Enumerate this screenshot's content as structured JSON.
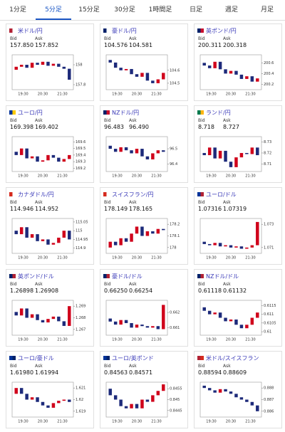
{
  "tabs": [
    "1分足",
    "5分足",
    "15分足",
    "30分足",
    "1時間足",
    "日足",
    "週足",
    "月足"
  ],
  "active_tab": 1,
  "bid_label": "Bid",
  "ask_label": "Ask",
  "time_labels": [
    "19:30",
    "20:30",
    "21:30"
  ],
  "cards": [
    {
      "pair": "米ドル/円",
      "bid": "157.850",
      "ask": "157.852",
      "ylim": [
        157.75,
        158.1
      ],
      "yticks": [
        158,
        157.8
      ],
      "closes": [
        157.95,
        157.98,
        158.0,
        157.97,
        158.02,
        158.0,
        158.03,
        157.99,
        158.01,
        157.98,
        157.96,
        157.85
      ]
    },
    {
      "pair": "豪ドル/円",
      "bid": "104.576",
      "ask": "104.581",
      "ylim": [
        104.45,
        104.72
      ],
      "yticks": [
        104.6,
        104.5
      ],
      "closes": [
        104.68,
        104.66,
        104.62,
        104.6,
        104.61,
        104.57,
        104.55,
        104.58,
        104.52,
        104.5,
        104.53,
        104.58
      ]
    },
    {
      "pair": "英ポンド/円",
      "bid": "200.311",
      "ask": "200.318",
      "ylim": [
        200.1,
        200.75
      ],
      "yticks": [
        200.6,
        200.4,
        200.2
      ],
      "closes": [
        200.6,
        200.55,
        200.5,
        200.62,
        200.48,
        200.4,
        200.45,
        200.38,
        200.3,
        200.35,
        200.25,
        200.31
      ]
    },
    {
      "pair": "ユーロ/円",
      "bid": "169.398",
      "ask": "169.402",
      "ylim": [
        169.15,
        169.68
      ],
      "yticks": [
        169.6,
        169.5,
        169.4,
        169.3,
        169.2
      ],
      "closes": [
        169.45,
        169.4,
        169.5,
        169.35,
        169.38,
        169.3,
        169.32,
        169.4,
        169.36,
        169.3,
        169.34,
        169.4
      ]
    },
    {
      "pair": "NZドル/円",
      "bid": "96.483",
      "ask": "96.490",
      "ylim": [
        96.35,
        96.58
      ],
      "yticks": [
        96.5,
        96.4
      ],
      "closes": [
        96.52,
        96.5,
        96.48,
        96.51,
        96.49,
        96.47,
        96.5,
        96.45,
        96.43,
        96.47,
        96.49,
        96.48
      ]
    },
    {
      "pair": "ランド/円",
      "bid": "8.718",
      "ask": "8.727",
      "ylim": [
        8.703,
        8.735
      ],
      "yticks": [
        8.73,
        8.72,
        8.71
      ],
      "closes": [
        8.72,
        8.718,
        8.725,
        8.715,
        8.722,
        8.712,
        8.707,
        8.716,
        8.72,
        8.719,
        8.725,
        8.718
      ]
    },
    {
      "pair": "カナダドル/円",
      "bid": "114.946",
      "ask": "114.952",
      "ylim": [
        114.87,
        115.07
      ],
      "yticks": [
        115.05,
        115,
        114.95,
        114.9
      ],
      "closes": [
        115.0,
        114.98,
        115.02,
        114.96,
        114.98,
        114.94,
        114.95,
        114.92,
        114.93,
        114.96,
        115.0,
        114.95
      ]
    },
    {
      "pair": "スイスフラン/円",
      "bid": "178.149",
      "ask": "178.165",
      "ylim": [
        177.95,
        178.25
      ],
      "yticks": [
        178.2,
        178.1,
        178
      ],
      "closes": [
        178.0,
        178.05,
        178.02,
        178.08,
        178.05,
        178.12,
        178.18,
        178.1,
        178.14,
        178.12,
        178.16,
        178.15
      ]
    },
    {
      "pair": "ユーロ/ドル",
      "bid": "1.07316",
      "ask": "1.07319",
      "ylim": [
        1.0705,
        1.0735
      ],
      "yticks": [
        1.073,
        1.071
      ],
      "closes": [
        1.0715,
        1.0713,
        1.0712,
        1.0714,
        1.0711,
        1.0712,
        1.071,
        1.0711,
        1.0709,
        1.071,
        1.0712,
        1.0732
      ]
    },
    {
      "pair": "英ポンド/ドル",
      "bid": "1.26898",
      "ask": "1.26908",
      "ylim": [
        1.2665,
        1.2695
      ],
      "yticks": [
        1.269,
        1.268,
        1.267
      ],
      "closes": [
        1.2685,
        1.2682,
        1.2688,
        1.268,
        1.2683,
        1.2678,
        1.2676,
        1.2679,
        1.2681,
        1.2677,
        1.2673,
        1.269
      ]
    },
    {
      "pair": "豪ドル/ドル",
      "bid": "0.66250",
      "ask": "0.66254",
      "ylim": [
        0.6605,
        0.6628
      ],
      "yticks": [
        0.662,
        0.661
      ],
      "closes": [
        0.6616,
        0.6614,
        0.6612,
        0.6615,
        0.6613,
        0.661,
        0.6612,
        0.6611,
        0.661,
        0.6611,
        0.6609,
        0.6625
      ]
    },
    {
      "pair": "NZドル/ドル",
      "bid": "0.61118",
      "ask": "0.61132",
      "ylim": [
        0.6098,
        0.6118
      ],
      "yticks": [
        0.6115,
        0.611,
        0.6105,
        0.61
      ],
      "closes": [
        0.6114,
        0.6112,
        0.611,
        0.6111,
        0.6108,
        0.6106,
        0.6107,
        0.6104,
        0.6102,
        0.6104,
        0.6108,
        0.6111
      ]
    },
    {
      "pair": "ユーロ/豪ドル",
      "bid": "1.61980",
      "ask": "1.61994",
      "ylim": [
        1.6185,
        1.6215
      ],
      "yticks": [
        1.621,
        1.62,
        1.619
      ],
      "closes": [
        1.6205,
        1.621,
        1.6205,
        1.62,
        1.6202,
        1.6198,
        1.6195,
        1.6193,
        1.6197,
        1.6199,
        1.62,
        1.6198
      ]
    },
    {
      "pair": "ユーロ/英ポンド",
      "bid": "0.84563",
      "ask": "0.84571",
      "ylim": [
        0.8442,
        0.8458
      ],
      "yticks": [
        0.8455,
        0.845,
        0.8445
      ],
      "closes": [
        0.8455,
        0.8452,
        0.845,
        0.8447,
        0.8446,
        0.8448,
        0.8446,
        0.845,
        0.8449,
        0.8452,
        0.8454,
        0.8457
      ]
    },
    {
      "pair": "米ドル/スイスフラン",
      "bid": "0.88594",
      "ask": "0.88609",
      "ylim": [
        0.8855,
        0.8885
      ],
      "yticks": [
        0.888,
        0.887,
        0.886
      ],
      "closes": [
        0.8882,
        0.888,
        0.8878,
        0.8876,
        0.8879,
        0.8877,
        0.8875,
        0.8872,
        0.887,
        0.8868,
        0.8865,
        0.886
      ]
    }
  ]
}
